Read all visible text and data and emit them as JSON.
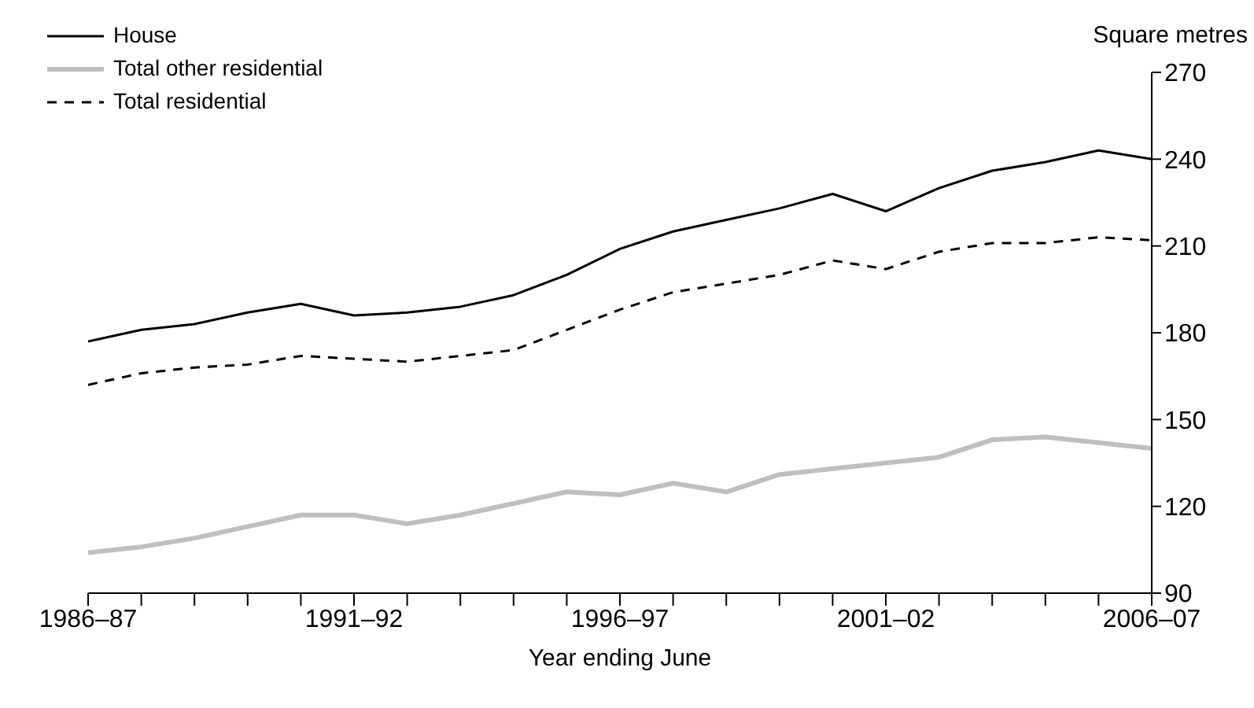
{
  "chart_data": {
    "type": "line",
    "xlabel": "Year ending June",
    "ylabel": "Square metres",
    "categories": [
      "1986–87",
      null,
      null,
      null,
      null,
      "1991–92",
      null,
      null,
      null,
      null,
      "1996–97",
      null,
      null,
      null,
      null,
      "2001–02",
      null,
      null,
      null,
      null,
      "2006–07"
    ],
    "series": [
      {
        "name": "House",
        "color": "#000000",
        "line_style": "solid",
        "values": [
          177,
          181,
          183,
          187,
          190,
          186,
          187,
          189,
          193,
          200,
          209,
          215,
          219,
          223,
          228,
          222,
          230,
          236,
          239,
          243,
          240
        ]
      },
      {
        "name": "Total other residential",
        "color": "#bfbfbf",
        "line_style": "solid",
        "values": [
          104,
          106,
          109,
          113,
          117,
          117,
          114,
          117,
          121,
          125,
          124,
          128,
          125,
          131,
          133,
          135,
          137,
          143,
          144,
          142,
          140
        ]
      },
      {
        "name": "Total residential",
        "color": "#000000",
        "line_style": "dashed",
        "values": [
          162,
          166,
          168,
          169,
          172,
          171,
          170,
          172,
          174,
          181,
          188,
          194,
          197,
          200,
          205,
          202,
          208,
          211,
          211,
          213,
          212
        ]
      }
    ],
    "ylim": [
      90,
      270
    ],
    "yticks": [
      90,
      120,
      150,
      180,
      210,
      240,
      270
    ],
    "grid": false,
    "legend": "top left",
    "marker": "none"
  }
}
